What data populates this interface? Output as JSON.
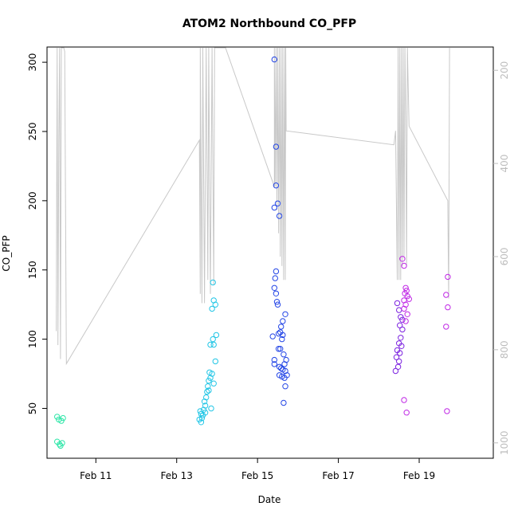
{
  "chart_data": {
    "type": "scatter",
    "title": "ATOM2 Northbound CO_PFP",
    "xlabel": "Date",
    "ylabel": "CO_PFP",
    "xlim": [
      "2016-02-09T19:00",
      "2016-02-20T20:00"
    ],
    "ylim": [
      14,
      311
    ],
    "x_ticks": [
      {
        "label": "Feb 11",
        "value": "2016-02-11"
      },
      {
        "label": "Feb 13",
        "value": "2016-02-13"
      },
      {
        "label": "Feb 15",
        "value": "2016-02-15"
      },
      {
        "label": "Feb 17",
        "value": "2016-02-17"
      },
      {
        "label": "Feb 19",
        "value": "2016-02-19"
      }
    ],
    "y_ticks": [
      50,
      100,
      150,
      200,
      250,
      300
    ],
    "y2_ticks": [
      200,
      400,
      600,
      800,
      1000
    ],
    "y2lim": [
      1033,
      150
    ],
    "grid": false,
    "legend": "none",
    "colors": {
      "feb10": "#2ee6a8",
      "feb13": "#22c6e6",
      "feb15": "#2446e6",
      "feb18": "#7c22e0",
      "feb19": "#c028e6",
      "altitude_line": "#c8c8c8"
    },
    "series": [
      {
        "color_key": "feb10",
        "points": [
          [
            "2016-02-10T01:00",
            44
          ],
          [
            "2016-02-10T02:00",
            42
          ],
          [
            "2016-02-10T03:30",
            41
          ],
          [
            "2016-02-10T04:30",
            43
          ],
          [
            "2016-02-10T01:00",
            26
          ],
          [
            "2016-02-10T02:30",
            24
          ],
          [
            "2016-02-10T04:00",
            25
          ],
          [
            "2016-02-10T03:00",
            23
          ]
        ]
      },
      {
        "color_key": "feb13",
        "points": [
          [
            "2016-02-13T14:00",
            48
          ],
          [
            "2016-02-13T14:30",
            46
          ],
          [
            "2016-02-13T15:00",
            43
          ],
          [
            "2016-02-13T13:30",
            42
          ],
          [
            "2016-02-13T15:30",
            45
          ],
          [
            "2016-02-13T16:00",
            49
          ],
          [
            "2016-02-13T17:00",
            52
          ],
          [
            "2016-02-13T16:30",
            55
          ],
          [
            "2016-02-13T17:30",
            58
          ],
          [
            "2016-02-13T18:00",
            62
          ],
          [
            "2016-02-13T18:30",
            66
          ],
          [
            "2016-02-13T19:00",
            70
          ],
          [
            "2016-02-13T20:00",
            72
          ],
          [
            "2016-02-13T21:00",
            75
          ],
          [
            "2016-02-13T19:30",
            76
          ],
          [
            "2016-02-13T22:00",
            68
          ],
          [
            "2016-02-13T20:30",
            50
          ],
          [
            "2016-02-13T23:00",
            84
          ],
          [
            "2016-02-13T20:00",
            96
          ],
          [
            "2016-02-13T22:00",
            96
          ],
          [
            "2016-02-13T21:30",
            100
          ],
          [
            "2016-02-13T23:30",
            103
          ],
          [
            "2016-02-13T21:00",
            122
          ],
          [
            "2016-02-13T22:00",
            128
          ],
          [
            "2016-02-13T23:00",
            125
          ],
          [
            "2016-02-13T21:30",
            141
          ],
          [
            "2016-02-13T14:30",
            40
          ],
          [
            "2016-02-13T19:00",
            63
          ],
          [
            "2016-02-13T17:00",
            47
          ]
        ]
      },
      {
        "color_key": "feb15",
        "points": [
          [
            "2016-02-15T10:00",
            302
          ],
          [
            "2016-02-15T11:00",
            239
          ],
          [
            "2016-02-15T11:00",
            211
          ],
          [
            "2016-02-15T12:00",
            198
          ],
          [
            "2016-02-15T10:00",
            195
          ],
          [
            "2016-02-15T13:00",
            189
          ],
          [
            "2016-02-15T11:00",
            149
          ],
          [
            "2016-02-15T10:30",
            144
          ],
          [
            "2016-02-15T10:00",
            137
          ],
          [
            "2016-02-15T11:00",
            133
          ],
          [
            "2016-02-15T11:30",
            127
          ],
          [
            "2016-02-15T12:00",
            125
          ],
          [
            "2016-02-15T16:30",
            118
          ],
          [
            "2016-02-15T15:00",
            113
          ],
          [
            "2016-02-15T14:00",
            109
          ],
          [
            "2016-02-15T13:30",
            105
          ],
          [
            "2016-02-15T12:30",
            104
          ],
          [
            "2016-02-15T15:00",
            103
          ],
          [
            "2016-02-15T09:00",
            102
          ],
          [
            "2016-02-15T14:30",
            100
          ],
          [
            "2016-02-15T12:30",
            93
          ],
          [
            "2016-02-15T13:30",
            93
          ],
          [
            "2016-02-15T15:30",
            89
          ],
          [
            "2016-02-15T10:00",
            85
          ],
          [
            "2016-02-15T17:00",
            85
          ],
          [
            "2016-02-15T10:00",
            82
          ],
          [
            "2016-02-15T16:00",
            82
          ],
          [
            "2016-02-15T13:00",
            80
          ],
          [
            "2016-02-15T14:00",
            79
          ],
          [
            "2016-02-15T15:00",
            78
          ],
          [
            "2016-02-15T16:30",
            77
          ],
          [
            "2016-02-15T17:30",
            74
          ],
          [
            "2016-02-15T13:00",
            74
          ],
          [
            "2016-02-15T14:30",
            73
          ],
          [
            "2016-02-15T16:00",
            72
          ],
          [
            "2016-02-15T16:30",
            66
          ],
          [
            "2016-02-15T15:30",
            54
          ]
        ]
      },
      {
        "color_key": "feb18",
        "points": [
          [
            "2016-02-18T11:00",
            126
          ],
          [
            "2016-02-18T12:00",
            121
          ],
          [
            "2016-02-18T13:00",
            116
          ],
          [
            "2016-02-18T14:00",
            114
          ],
          [
            "2016-02-18T12:30",
            110
          ],
          [
            "2016-02-18T14:00",
            107
          ],
          [
            "2016-02-18T13:00",
            101
          ],
          [
            "2016-02-18T12:00",
            97
          ],
          [
            "2016-02-18T13:30",
            95
          ],
          [
            "2016-02-18T11:00",
            92
          ],
          [
            "2016-02-18T12:30",
            90
          ],
          [
            "2016-02-18T10:30",
            87
          ],
          [
            "2016-02-18T12:00",
            84
          ],
          [
            "2016-02-18T11:30",
            80
          ],
          [
            "2016-02-18T10:00",
            77
          ]
        ]
      },
      {
        "color_key": "feb19",
        "points": [
          [
            "2016-02-18T14:00",
            158
          ],
          [
            "2016-02-18T15:00",
            153
          ],
          [
            "2016-02-18T16:00",
            137
          ],
          [
            "2016-02-18T16:30",
            135
          ],
          [
            "2016-02-18T15:30",
            133
          ],
          [
            "2016-02-18T17:00",
            131
          ],
          [
            "2016-02-18T15:00",
            128
          ],
          [
            "2016-02-18T18:00",
            129
          ],
          [
            "2016-02-18T16:00",
            125
          ],
          [
            "2016-02-18T15:00",
            122
          ],
          [
            "2016-02-18T17:00",
            118
          ],
          [
            "2016-02-18T16:00",
            113
          ],
          [
            "2016-02-18T15:00",
            56
          ],
          [
            "2016-02-18T16:30",
            47
          ],
          [
            "2016-02-19T17:00",
            145
          ],
          [
            "2016-02-19T16:00",
            132
          ],
          [
            "2016-02-19T17:00",
            123
          ],
          [
            "2016-02-19T16:00",
            109
          ],
          [
            "2016-02-19T16:30",
            48
          ]
        ]
      }
    ],
    "altitude_path": [
      [
        "2016-02-10T00:30",
        760
      ],
      [
        "2016-02-10T01:00",
        150
      ],
      [
        "2016-02-10T01:30",
        790
      ],
      [
        "2016-02-10T02:00",
        350
      ],
      [
        "2016-02-10T02:30",
        150
      ],
      [
        "2016-02-10T03:00",
        820
      ],
      [
        "2016-02-10T03:30",
        150
      ],
      [
        "2016-02-10T04:00",
        150
      ],
      [
        "2016-02-10T04:30",
        150
      ],
      [
        "2016-02-10T05:00",
        150
      ],
      [
        "2016-02-10T05:30",
        160
      ],
      [
        "2016-02-10T06:30",
        830
      ],
      [
        "2016-02-13T13:30",
        350
      ],
      [
        "2016-02-13T14:00",
        680
      ],
      [
        "2016-02-13T14:00",
        150
      ],
      [
        "2016-02-13T15:00",
        700
      ],
      [
        "2016-02-13T15:30",
        150
      ],
      [
        "2016-02-13T16:30",
        700
      ],
      [
        "2016-02-13T17:30",
        150
      ],
      [
        "2016-02-13T18:30",
        650
      ],
      [
        "2016-02-13T19:00",
        150
      ],
      [
        "2016-02-13T20:00",
        680
      ],
      [
        "2016-02-13T21:00",
        150
      ],
      [
        "2016-02-13T22:00",
        660
      ],
      [
        "2016-02-13T22:30",
        150
      ],
      [
        "2016-02-14T05:00",
        150
      ],
      [
        "2016-02-15T10:00",
        450
      ],
      [
        "2016-02-15T10:00",
        150
      ],
      [
        "2016-02-15T10:30",
        450
      ],
      [
        "2016-02-15T11:00",
        150
      ],
      [
        "2016-02-15T11:30",
        500
      ],
      [
        "2016-02-15T12:00",
        150
      ],
      [
        "2016-02-15T12:30",
        550
      ],
      [
        "2016-02-15T13:00",
        150
      ],
      [
        "2016-02-15T13:30",
        600
      ],
      [
        "2016-02-15T14:00",
        150
      ],
      [
        "2016-02-15T14:30",
        620
      ],
      [
        "2016-02-15T15:00",
        150
      ],
      [
        "2016-02-15T15:30",
        650
      ],
      [
        "2016-02-15T16:00",
        150
      ],
      [
        "2016-02-15T16:30",
        650
      ],
      [
        "2016-02-15T16:45",
        150
      ],
      [
        "2016-02-15T17:00",
        330
      ],
      [
        "2016-02-18T09:00",
        360
      ],
      [
        "2016-02-18T10:00",
        330
      ],
      [
        "2016-02-18T11:00",
        650
      ],
      [
        "2016-02-18T11:30",
        150
      ],
      [
        "2016-02-18T12:00",
        650
      ],
      [
        "2016-02-18T12:30",
        150
      ],
      [
        "2016-02-18T13:00",
        650
      ],
      [
        "2016-02-18T13:30",
        150
      ],
      [
        "2016-02-18T14:00",
        620
      ],
      [
        "2016-02-18T14:30",
        150
      ],
      [
        "2016-02-18T15:00",
        600
      ],
      [
        "2016-02-18T15:30",
        150
      ],
      [
        "2016-02-18T16:00",
        300
      ],
      [
        "2016-02-18T16:30",
        620
      ],
      [
        "2016-02-18T17:00",
        150
      ],
      [
        "2016-02-18T18:00",
        320
      ],
      [
        "2016-02-19T17:00",
        480
      ],
      [
        "2016-02-19T17:30",
        690
      ],
      [
        "2016-02-19T18:00",
        150
      ]
    ]
  }
}
